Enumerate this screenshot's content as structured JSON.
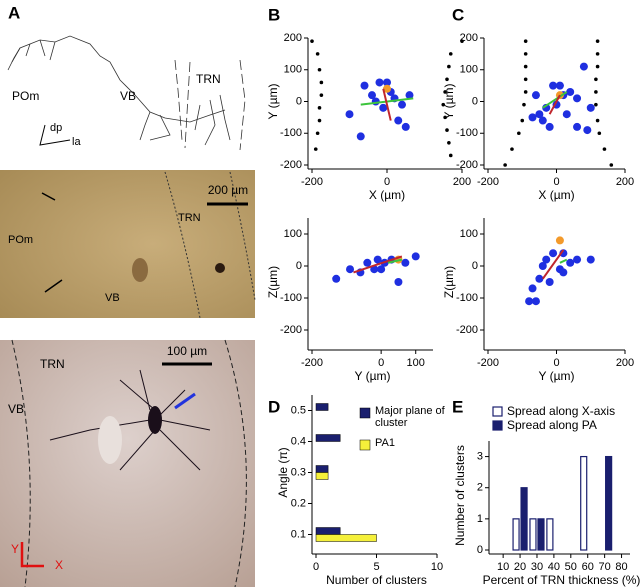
{
  "panel_labels": [
    "A",
    "B",
    "C",
    "D",
    "E"
  ],
  "figure_A": {
    "drawing": {
      "labels": [
        "POm",
        "VB",
        "TRN"
      ],
      "axes": [
        "dp",
        "la"
      ]
    },
    "micrograph_1": {
      "labels": [
        "TRN",
        "POm",
        "VB"
      ],
      "scale": "200 µm"
    },
    "micrograph_2": {
      "labels": [
        "TRN",
        "VB"
      ],
      "scale": "100 µm",
      "axes": [
        "Y",
        "X"
      ]
    }
  },
  "chart_data": [
    {
      "type": "scatter",
      "xlabel": "X (µm)",
      "ylabel": "Y (µm)",
      "xlim": [
        -200,
        200
      ],
      "ylim": [
        -200,
        200
      ],
      "xticks": [
        -200,
        0,
        200
      ],
      "yticks": [
        200,
        100,
        0,
        -100,
        -200
      ],
      "series": [
        {
          "color": "#000000",
          "x": [
            -200,
            -185,
            -180,
            -175,
            -175,
            -180,
            -180,
            -185,
            -190,
            200,
            170,
            165,
            160,
            155,
            150,
            155,
            160,
            165,
            170
          ],
          "values": [
            190,
            150,
            100,
            60,
            20,
            -20,
            -60,
            -100,
            -150,
            190,
            150,
            110,
            70,
            30,
            -10,
            -50,
            -90,
            -130,
            -170
          ]
        },
        {
          "color": "#1f2fe0",
          "x": [
            -100,
            -60,
            -40,
            -20,
            10,
            20,
            -10,
            40,
            30,
            50,
            60,
            -70,
            -30,
            0
          ],
          "values": [
            -40,
            50,
            20,
            60,
            30,
            10,
            -20,
            -10,
            -60,
            -80,
            20,
            -110,
            0,
            60
          ]
        },
        {
          "color": "#f39a2b",
          "x": [
            0
          ],
          "values": [
            40
          ]
        },
        {
          "color": "#3cc43c",
          "mode": "line",
          "x": [
            -70,
            70
          ],
          "values": [
            -10,
            10
          ]
        },
        {
          "color": "#c0262d",
          "mode": "line",
          "x": [
            -10,
            10
          ],
          "values": [
            40,
            -60
          ]
        }
      ]
    },
    {
      "type": "scatter",
      "xlabel": "Y (µm)",
      "ylabel": "Z(µm)",
      "xlim": [
        -200,
        150
      ],
      "ylim": [
        -250,
        150
      ],
      "xticks": [
        -200,
        0,
        100
      ],
      "yticks": [
        100,
        0,
        -100,
        -200
      ],
      "series": [
        {
          "color": "#1f2fe0",
          "x": [
            -130,
            -90,
            -60,
            -40,
            -20,
            0,
            10,
            30,
            50,
            -10,
            100,
            70
          ],
          "values": [
            -40,
            -10,
            -20,
            10,
            -10,
            -10,
            10,
            20,
            -50,
            20,
            30,
            10
          ]
        },
        {
          "color": "#f39a2b",
          "x": [
            50
          ],
          "values": [
            20
          ]
        },
        {
          "color": "#c0262d",
          "mode": "line",
          "x": [
            -80,
            60
          ],
          "values": [
            -20,
            30
          ]
        },
        {
          "color": "#3cc43c",
          "mode": "line",
          "x": [
            20,
            60
          ],
          "values": [
            10,
            20
          ]
        }
      ]
    },
    {
      "type": "scatter",
      "xlabel": "X (µm)",
      "ylabel": "Y (µm)",
      "xlim": [
        -200,
        200
      ],
      "ylim": [
        -200,
        200
      ],
      "xticks": [
        -200,
        0,
        200
      ],
      "yticks": [
        200,
        100,
        0,
        -100,
        -200
      ],
      "series": [
        {
          "color": "#000000",
          "x": [
            -90,
            -90,
            -90,
            -90,
            -90,
            -95,
            -100,
            -110,
            -130,
            -150,
            120,
            120,
            120,
            115,
            115,
            115,
            120,
            125,
            140,
            160
          ],
          "values": [
            190,
            150,
            110,
            70,
            30,
            -10,
            -60,
            -100,
            -150,
            -200,
            190,
            150,
            110,
            70,
            30,
            -10,
            -60,
            -100,
            -150,
            -200
          ]
        },
        {
          "color": "#1f2fe0",
          "x": [
            -70,
            -50,
            -30,
            -10,
            10,
            20,
            40,
            60,
            80,
            -40,
            -20,
            100,
            60,
            90,
            -60,
            0,
            30
          ],
          "values": [
            -50,
            -40,
            -20,
            50,
            50,
            20,
            30,
            10,
            110,
            -60,
            -80,
            -20,
            -80,
            -90,
            20,
            -10,
            -40
          ]
        },
        {
          "color": "#f39a2b",
          "x": [
            10
          ],
          "values": [
            20
          ]
        },
        {
          "color": "#3cc43c",
          "mode": "line",
          "x": [
            -40,
            30
          ],
          "values": [
            -20,
            30
          ]
        },
        {
          "color": "#c0262d",
          "mode": "line",
          "x": [
            10,
            -20
          ],
          "values": [
            20,
            -40
          ]
        }
      ]
    },
    {
      "type": "scatter",
      "xlabel": "Y (µm)",
      "ylabel": "Z(µm)",
      "xlim": [
        -200,
        200
      ],
      "ylim": [
        -250,
        150
      ],
      "xticks": [
        -200,
        0,
        200
      ],
      "yticks": [
        100,
        0,
        -100,
        -200
      ],
      "series": [
        {
          "color": "#1f2fe0",
          "x": [
            -80,
            -60,
            -70,
            -50,
            -40,
            -30,
            -10,
            20,
            40,
            60,
            100,
            10,
            20,
            -20
          ],
          "values": [
            -110,
            -110,
            -70,
            -40,
            0,
            20,
            40,
            40,
            10,
            20,
            20,
            -10,
            -20,
            -50
          ]
        },
        {
          "color": "#f39a2b",
          "x": [
            10
          ],
          "values": [
            80
          ]
        },
        {
          "color": "#c0262d",
          "mode": "line",
          "x": [
            -40,
            20
          ],
          "values": [
            -40,
            50
          ]
        },
        {
          "color": "#3cc43c",
          "mode": "line",
          "x": [
            10,
            30
          ],
          "values": [
            10,
            20
          ]
        }
      ]
    },
    {
      "type": "hbar",
      "xlabel": "Number of clusters",
      "ylabel": "Angle (π)",
      "xlim": [
        0,
        10
      ],
      "ylim": [
        0.05,
        0.55
      ],
      "xticks": [
        0,
        5,
        10
      ],
      "yticks": [
        0.1,
        0.2,
        0.3,
        0.4,
        0.5
      ],
      "y": [
        0.1,
        0.2,
        0.3,
        0.4,
        0.5
      ],
      "series": [
        {
          "name": "Major plane of cluster",
          "color": "#1a1f6e",
          "values": [
            2,
            0,
            1,
            2,
            1
          ]
        },
        {
          "name": "PA1",
          "color": "#f5f03a",
          "values": [
            5,
            0,
            1,
            0,
            0
          ]
        }
      ]
    },
    {
      "type": "vbar",
      "xlabel": "Percent of TRN thickness (%)",
      "ylabel": "Number of clusters",
      "xlim": [
        4,
        85
      ],
      "ylim": [
        0,
        3.5
      ],
      "xticks": [
        10,
        20,
        30,
        40,
        50,
        60,
        70,
        80
      ],
      "yticks": [
        0,
        1,
        2,
        3
      ],
      "x": [
        10,
        20,
        30,
        40,
        50,
        60,
        70,
        80
      ],
      "series": [
        {
          "name": "Spread along X-axis",
          "color": "#ffffff",
          "edgecolor": "#1a1f6e",
          "values": [
            0,
            1,
            1,
            1,
            0,
            3,
            0,
            0
          ]
        },
        {
          "name": "Spread along PA",
          "color": "#1a1f6e",
          "edgecolor": "#1a1f6e",
          "values": [
            0,
            2,
            1,
            0,
            0,
            0,
            3,
            0
          ]
        }
      ]
    }
  ]
}
